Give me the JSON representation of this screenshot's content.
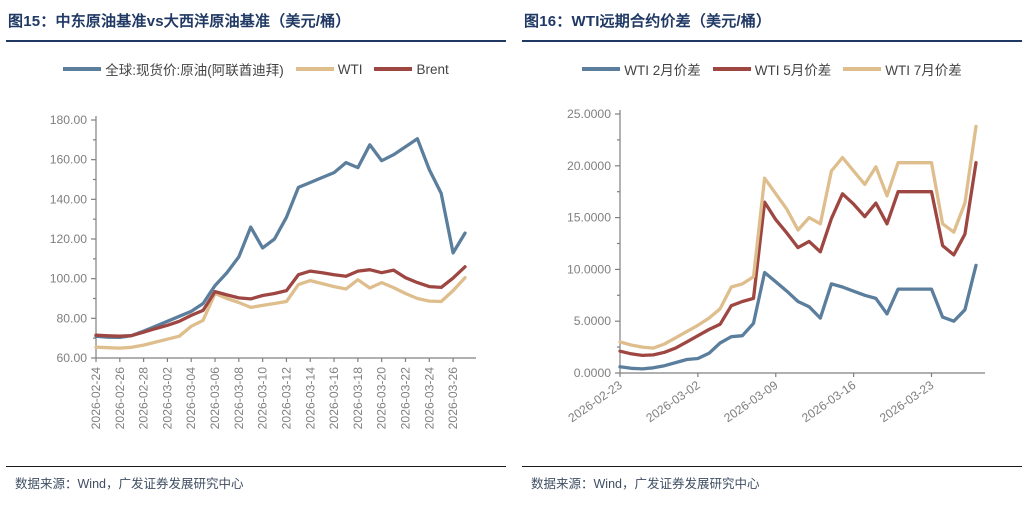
{
  "figures": [
    {
      "id": "fig15",
      "title_prefix": "图15：",
      "title": "中东原油基准vs大西洋原油基准（美元/桶）",
      "source": "数据来源：Wind，广发证券发展研究中心",
      "chart_data": {
        "type": "line",
        "legend_position": "top-center",
        "grid": false,
        "x": [
          "2026-02-24",
          "2026-02-25",
          "2026-02-26",
          "2026-02-27",
          "2026-02-28",
          "2026-03-01",
          "2026-03-02",
          "2026-03-03",
          "2026-03-04",
          "2026-03-05",
          "2026-03-06",
          "2026-03-07",
          "2026-03-08",
          "2026-03-09",
          "2026-03-10",
          "2026-03-11",
          "2026-03-12",
          "2026-03-13",
          "2026-03-14",
          "2026-03-15",
          "2026-03-16",
          "2026-03-17",
          "2026-03-18",
          "2026-03-19",
          "2026-03-20",
          "2026-03-21",
          "2026-03-22",
          "2026-03-23",
          "2026-03-24",
          "2026-03-25",
          "2026-03-26",
          "2026-03-27"
        ],
        "xtick_every": 2,
        "xtick_labels": [
          "2026-02-24",
          "2026-02-26",
          "2026-02-28",
          "2026-03-02",
          "2026-03-04",
          "2026-03-06",
          "2026-03-08",
          "2026-03-10",
          "2026-03-12",
          "2026-03-14",
          "2026-03-16",
          "2026-03-18",
          "2026-03-20",
          "2026-03-22",
          "2026-03-24",
          "2026-03-26"
        ],
        "xlabel_rotation": -90,
        "ylim": [
          60,
          180
        ],
        "ytick_step": 20,
        "y_minor_step": 10,
        "y_decimals": 2,
        "series": [
          {
            "name": "全球:现货价:原油(阿联酋迪拜)",
            "color": "#5B7E9D",
            "values": [
              71.0,
              70.5,
              70.4,
              71.3,
              73.5,
              76.0,
              78.5,
              81.0,
              83.5,
              87.5,
              96.5,
              103.0,
              111.0,
              126.0,
              115.5,
              120.0,
              131.0,
              146.0,
              148.5,
              151.0,
              153.5,
              158.5,
              156.0,
              167.5,
              159.5,
              162.5,
              166.5,
              170.5,
              155.0,
              143.0,
              113.0,
              123.0
            ]
          },
          {
            "name": "WTI",
            "color": "#DFBE8D",
            "values": [
              65.5,
              65.2,
              65.0,
              65.4,
              66.5,
              68.0,
              69.5,
              71.0,
              76.0,
              79.0,
              92.5,
              90.0,
              88.0,
              85.5,
              86.5,
              87.5,
              88.5,
              97.0,
              99.0,
              97.5,
              96.0,
              94.8,
              99.5,
              95.3,
              98.0,
              95.5,
              92.5,
              90.0,
              88.7,
              88.5,
              94.0,
              100.5
            ]
          },
          {
            "name": "Brent",
            "color": "#9E4742",
            "values": [
              71.5,
              71.2,
              71.0,
              71.3,
              73.0,
              74.8,
              76.5,
              78.5,
              81.5,
              84.0,
              93.5,
              91.8,
              90.3,
              89.8,
              91.5,
              92.5,
              94.0,
              102.0,
              103.8,
              103.0,
              102.0,
              101.2,
              103.8,
              104.5,
              103.0,
              104.3,
              100.5,
              98.0,
              96.0,
              95.6,
              100.3,
              106.0
            ]
          }
        ]
      }
    },
    {
      "id": "fig16",
      "title_prefix": "图16：",
      "title": "WTI远期合约价差（美元/桶）",
      "source": "数据来源：Wind，广发证券发展研究中心",
      "chart_data": {
        "type": "line",
        "legend_position": "top-center",
        "grid": false,
        "x": [
          "2026-02-23",
          "2026-02-24",
          "2026-02-25",
          "2026-02-26",
          "2026-02-27",
          "2026-02-28",
          "2026-03-01",
          "2026-03-02",
          "2026-03-03",
          "2026-03-04",
          "2026-03-05",
          "2026-03-06",
          "2026-03-07",
          "2026-03-08",
          "2026-03-09",
          "2026-03-10",
          "2026-03-11",
          "2026-03-12",
          "2026-03-13",
          "2026-03-14",
          "2026-03-15",
          "2026-03-16",
          "2026-03-17",
          "2026-03-18",
          "2026-03-19",
          "2026-03-20",
          "2026-03-21",
          "2026-03-22",
          "2026-03-23",
          "2026-03-24",
          "2026-03-25",
          "2026-03-26",
          "2026-03-27"
        ],
        "xtick_indices": [
          0,
          7,
          14,
          21,
          28
        ],
        "xtick_labels": [
          "2026-02-23",
          "2026-03-02",
          "2026-03-09",
          "2026-03-16",
          "2026-03-23"
        ],
        "xlabel_rotation": -35,
        "ylim": [
          0,
          25
        ],
        "ytick_step": 5,
        "y_minor_step": 2.5,
        "y_decimals": 4,
        "series": [
          {
            "name": "WTI 2月价差",
            "color": "#5B7E9D",
            "values": [
              0.6,
              0.45,
              0.4,
              0.5,
              0.7,
              1.0,
              1.3,
              1.4,
              1.9,
              2.9,
              3.5,
              3.6,
              4.8,
              9.7,
              8.8,
              7.9,
              6.9,
              6.4,
              5.3,
              8.6,
              8.3,
              7.9,
              7.5,
              7.2,
              5.7,
              8.1,
              8.1,
              8.1,
              8.1,
              5.4,
              5.0,
              6.1,
              10.4
            ]
          },
          {
            "name": "WTI 5月价差",
            "color": "#9E4742",
            "values": [
              2.1,
              1.85,
              1.7,
              1.75,
              2.0,
              2.4,
              3.0,
              3.6,
              4.2,
              4.7,
              6.5,
              6.9,
              7.2,
              16.5,
              14.8,
              13.5,
              12.1,
              12.7,
              11.7,
              14.9,
              17.3,
              16.3,
              15.1,
              16.4,
              14.4,
              17.5,
              17.5,
              17.5,
              17.5,
              12.3,
              11.4,
              13.4,
              20.3
            ]
          },
          {
            "name": "WTI 7月价差",
            "color": "#DFBE8D",
            "values": [
              3.0,
              2.7,
              2.5,
              2.4,
              2.8,
              3.4,
              4.0,
              4.6,
              5.3,
              6.2,
              8.3,
              8.6,
              9.3,
              18.8,
              17.3,
              15.8,
              13.8,
              15.0,
              14.4,
              19.5,
              20.8,
              19.5,
              18.2,
              19.9,
              17.1,
              20.3,
              20.3,
              20.3,
              20.3,
              14.4,
              13.6,
              16.4,
              23.8
            ]
          }
        ]
      }
    }
  ],
  "styles": {
    "title_color": "#1F3864",
    "axis_color": "#808080",
    "tick_label_color": "#7F7F7F",
    "legend_text_color": "#444444",
    "source_text_color": "#3F4E63"
  }
}
